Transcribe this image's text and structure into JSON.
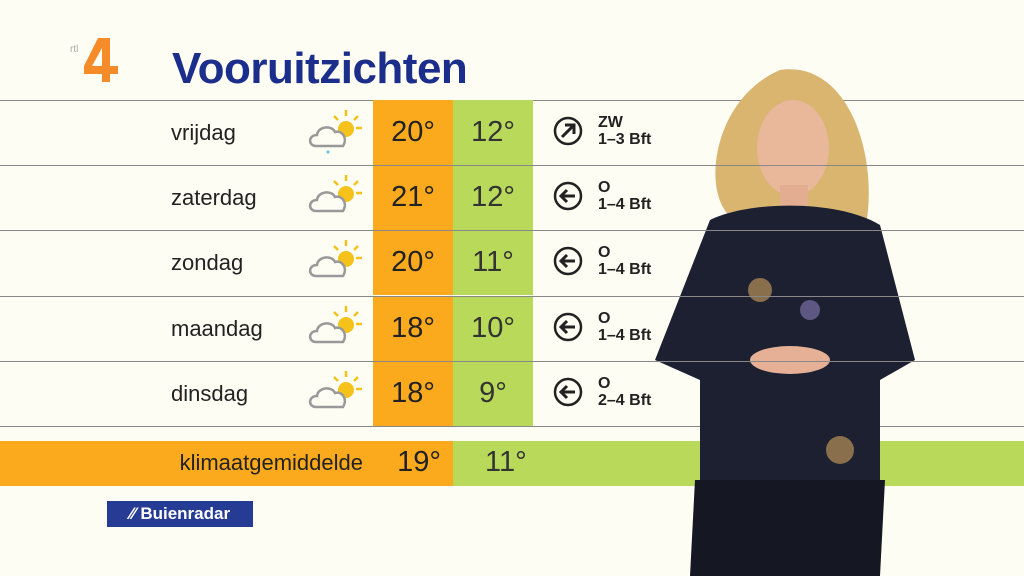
{
  "channel_logo": "rtl 4",
  "title": "Vooruitzichten",
  "colors": {
    "title": "#1c2e8c",
    "max_temp": "#fbaa1e",
    "min_temp": "#b9d95a",
    "buienradar": "#253b94"
  },
  "forecast": [
    {
      "day": "vrijdag",
      "icon": "cloud-sun-rain-icon",
      "max": "20°",
      "min": "12°",
      "wind_icon": "arrow-northeast-icon",
      "wind_dir": "ZW",
      "wind_force": "1–3 Bft"
    },
    {
      "day": "zaterdag",
      "icon": "cloud-sun-icon",
      "max": "21°",
      "min": "12°",
      "wind_icon": "arrow-west-icon",
      "wind_dir": "O",
      "wind_force": "1–4 Bft"
    },
    {
      "day": "zondag",
      "icon": "cloud-sun-icon",
      "max": "20°",
      "min": "11°",
      "wind_icon": "arrow-west-icon",
      "wind_dir": "O",
      "wind_force": "1–4 Bft"
    },
    {
      "day": "maandag",
      "icon": "cloud-sun-icon",
      "max": "18°",
      "min": "10°",
      "wind_icon": "arrow-west-icon",
      "wind_dir": "O",
      "wind_force": "1–4 Bft"
    },
    {
      "day": "dinsdag",
      "icon": "cloud-sun-icon",
      "max": "18°",
      "min": "9°",
      "wind_icon": "arrow-west-icon",
      "wind_dir": "O",
      "wind_force": "2–4 Bft"
    }
  ],
  "climate": {
    "label": "klimaatgemiddelde",
    "max": "19°",
    "min": "11°"
  },
  "sponsor": "Buienradar"
}
